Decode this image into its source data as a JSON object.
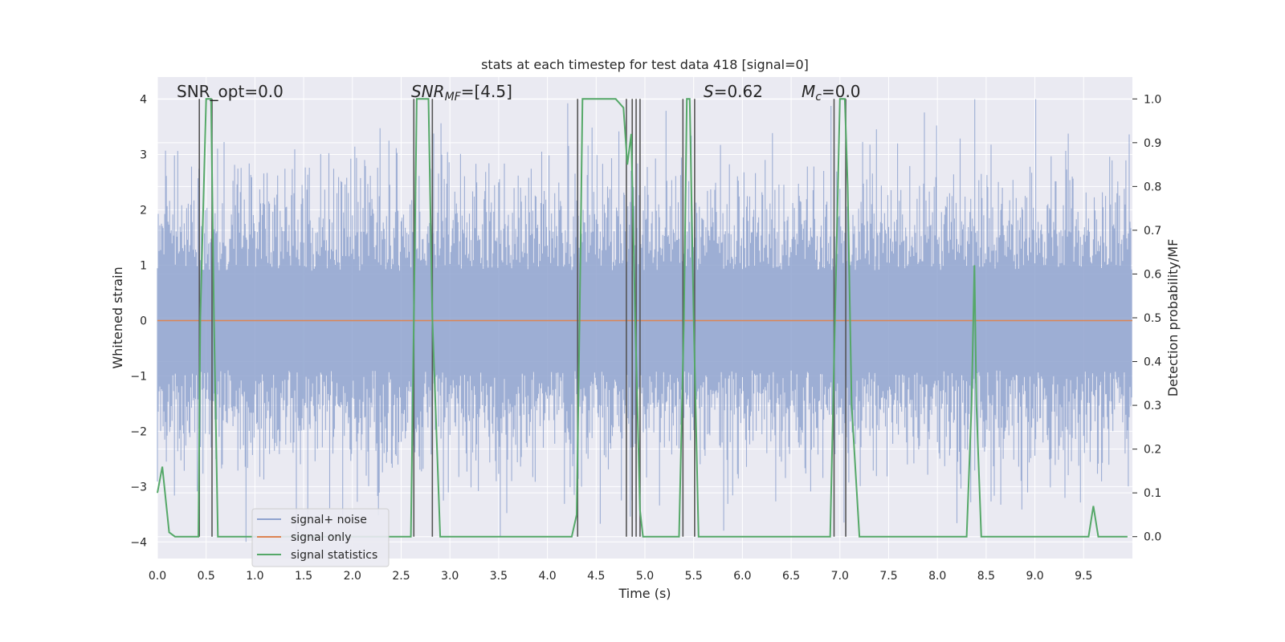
{
  "chart_data": {
    "type": "line",
    "title": "stats at each timestep for test data 418 [signal=0]",
    "xlabel": "Time (s)",
    "ylabel": "Whitened strain",
    "ylabel_right": "Detection probability/MF",
    "xlim": [
      0,
      10
    ],
    "ylim": [
      -4.3,
      4.4
    ],
    "ylim_right": [
      -0.05,
      1.05
    ],
    "xticks": [
      "0.0",
      "0.5",
      "1.0",
      "1.5",
      "2.0",
      "2.5",
      "3.0",
      "3.5",
      "4.0",
      "4.5",
      "5.0",
      "5.5",
      "6.0",
      "6.5",
      "7.0",
      "7.5",
      "8.0",
      "8.5",
      "9.0",
      "9.5"
    ],
    "yticks": [
      "4",
      "3",
      "2",
      "1",
      "0",
      "−1",
      "−2",
      "−3",
      "−4"
    ],
    "yticks_right": [
      "1.0",
      "0.9",
      "0.8",
      "0.7",
      "0.6",
      "0.5",
      "0.4",
      "0.3",
      "0.2",
      "0.1",
      "0.0"
    ],
    "grid": true,
    "legend_position": "lower-left",
    "annotations": [
      {
        "id": "snr-opt",
        "text": "SNR_opt=0.0"
      },
      {
        "id": "snr-mf",
        "base": "SNR",
        "sub": "MF",
        "rest": "=[4.5]"
      },
      {
        "id": "s-stat",
        "base": "S",
        "rest": "=0.62"
      },
      {
        "id": "mc",
        "base": "M",
        "sub": "c",
        "rest": "=0.0"
      }
    ],
    "series": [
      {
        "name": "signal+ noise",
        "color": "#8fa3cf",
        "kind": "noise",
        "envelope_std": 1.0,
        "peak_abs": 4.0
      },
      {
        "name": "signal only",
        "color": "#dd8452",
        "kind": "flat",
        "value": 0.0
      },
      {
        "name": "signal statistics",
        "color": "#55a868",
        "axis": "right",
        "x": [
          0.0,
          0.05,
          0.12,
          0.18,
          0.25,
          0.42,
          0.44,
          0.5,
          0.55,
          0.58,
          0.62,
          0.7,
          2.6,
          2.63,
          2.66,
          2.7,
          2.78,
          2.82,
          2.9,
          4.25,
          4.3,
          4.33,
          4.36,
          4.5,
          4.6,
          4.7,
          4.78,
          4.82,
          4.86,
          4.9,
          4.95,
          4.98,
          5.03,
          5.1,
          5.35,
          5.4,
          5.43,
          5.46,
          5.5,
          5.55,
          5.6,
          6.9,
          6.95,
          7.0,
          7.05,
          7.08,
          7.12,
          7.2,
          8.3,
          8.35,
          8.38,
          8.4,
          8.45,
          8.5,
          9.55,
          9.6,
          9.65,
          9.7,
          9.95
        ],
        "y": [
          0.1,
          0.16,
          0.01,
          0.0,
          0.0,
          0.0,
          0.5,
          1.0,
          1.0,
          0.5,
          0.0,
          0.0,
          0.0,
          0.5,
          1.0,
          1.0,
          1.0,
          0.5,
          0.0,
          0.0,
          0.05,
          0.5,
          1.0,
          1.0,
          1.0,
          1.0,
          0.98,
          0.85,
          0.92,
          0.5,
          0.06,
          0.0,
          0.0,
          0.0,
          0.0,
          0.5,
          1.0,
          1.0,
          0.5,
          0.0,
          0.0,
          0.0,
          0.5,
          1.0,
          1.0,
          0.8,
          0.3,
          0.0,
          0.0,
          0.3,
          0.62,
          0.3,
          0.0,
          0.0,
          0.0,
          0.07,
          0.0,
          0.0,
          0.0
        ]
      }
    ],
    "vertical_lines": [
      0.43,
      0.56,
      2.63,
      2.82,
      4.31,
      4.81,
      4.87,
      4.91,
      4.95,
      5.39,
      5.51,
      6.94,
      7.06
    ]
  }
}
